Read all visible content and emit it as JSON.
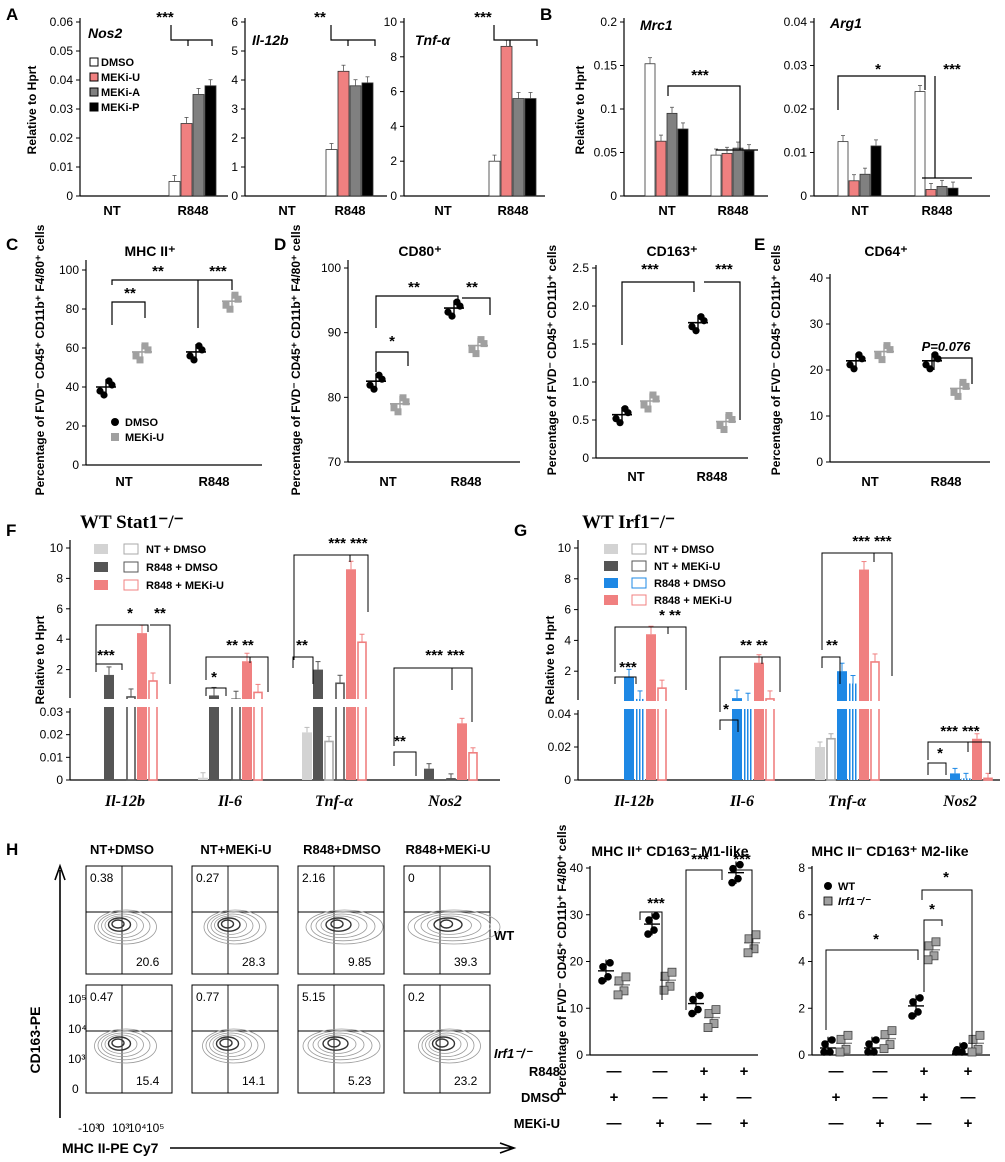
{
  "colors": {
    "dmso": "#ffffff",
    "meku": "#f08080",
    "meka": "#808080",
    "mekp": "#000000",
    "dark": "#555555",
    "light": "#d3d3d3",
    "blue": "#1e88e5",
    "grey_pt": "#a0a0a0"
  },
  "labels": {
    "A": "A",
    "B": "B",
    "C": "C",
    "D": "D",
    "E": "E",
    "F": "F",
    "G": "G",
    "H": "H",
    "rel_hprt": "Relative to Hprt",
    "nt": "NT",
    "r848": "R848",
    "pct_mhc": "Percentage of FVD⁻ CD45⁺ CD11b⁺ F4/80⁺ cells",
    "pct_cd163": "Percentage of FVD⁻ CD45⁺ CD11b⁺ cells",
    "legA": [
      "DMSO",
      "MEKi-U",
      "MEKi-A",
      "MEKi-P"
    ],
    "legC": [
      "DMSO",
      "MEKi-U"
    ],
    "legH": [
      "WT",
      "Irf1⁻/⁻"
    ],
    "F_title": "WT Stat1⁻/⁻",
    "G_title": "WT Irf1⁻/⁻",
    "F_leg": [
      "NT      + DMSO",
      "R848 + DMSO",
      "R848 + MEKi-U"
    ],
    "G_leg": [
      "NT      + DMSO",
      "NT      + MEKi-U",
      "R848 + DMSO",
      "R848 + MEKi-U"
    ],
    "pval": "P=0.076",
    "cd163pe": "CD163-PE",
    "mhcpe": "MHC II-PE Cy7",
    "wt": "WT",
    "irf1": "Irf1⁻/⁻",
    "H_m1": "MHC II⁺ CD163⁻ M1-like",
    "H_m2": "MHC II⁻ CD163⁺ M2-like",
    "H_rows": [
      "R848",
      "DMSO",
      "MEKi-U"
    ],
    "flow_ticks": [
      "10⁵",
      "10⁴",
      "10³",
      "0",
      "-10³"
    ]
  },
  "chart_data": [
    {
      "id": "A1",
      "type": "bar",
      "title": "Nos2",
      "categories": [
        "NT",
        "R848"
      ],
      "series": [
        {
          "name": "DMSO",
          "values": [
            0,
            0.005
          ]
        },
        {
          "name": "MEKi-U",
          "values": [
            0,
            0.025
          ]
        },
        {
          "name": "MEKi-A",
          "values": [
            0,
            0.035
          ]
        },
        {
          "name": "MEKi-P",
          "values": [
            0,
            0.038
          ]
        }
      ],
      "ylim": [
        0,
        0.06
      ],
      "yticks": [
        "0",
        "0.01",
        "0.02",
        "0.03",
        "0.04",
        "0.05",
        "0.06"
      ],
      "sig": "***"
    },
    {
      "id": "A2",
      "type": "bar",
      "title": "Il-12b",
      "categories": [
        "NT",
        "R848"
      ],
      "series": [
        {
          "name": "DMSO",
          "values": [
            0,
            1.6
          ]
        },
        {
          "name": "MEKi-U",
          "values": [
            0,
            4.3
          ]
        },
        {
          "name": "MEKi-A",
          "values": [
            0,
            3.8
          ]
        },
        {
          "name": "MEKi-P",
          "values": [
            0,
            3.9
          ]
        }
      ],
      "ylim": [
        0,
        6
      ],
      "yticks": [
        "0",
        "1",
        "2",
        "3",
        "4",
        "5",
        "6"
      ],
      "sig": "**"
    },
    {
      "id": "A3",
      "type": "bar",
      "title": "Tnf-α",
      "categories": [
        "NT",
        "R848"
      ],
      "series": [
        {
          "name": "DMSO",
          "values": [
            0,
            2.0
          ]
        },
        {
          "name": "MEKi-U",
          "values": [
            0,
            8.6
          ]
        },
        {
          "name": "MEKi-A",
          "values": [
            0,
            5.6
          ]
        },
        {
          "name": "MEKi-P",
          "values": [
            0,
            5.6
          ]
        }
      ],
      "ylim": [
        0,
        10
      ],
      "yticks": [
        "0",
        "2",
        "4",
        "6",
        "8",
        "10"
      ],
      "sig": "***"
    },
    {
      "id": "B1",
      "type": "bar",
      "title": "Mrc1",
      "categories": [
        "NT",
        "R848"
      ],
      "series": [
        {
          "name": "DMSO",
          "values": [
            0.152,
            0.047
          ]
        },
        {
          "name": "MEKi-U",
          "values": [
            0.063,
            0.049
          ]
        },
        {
          "name": "MEKi-A",
          "values": [
            0.095,
            0.055
          ]
        },
        {
          "name": "MEKi-P",
          "values": [
            0.077,
            0.052
          ]
        }
      ],
      "ylim": [
        0,
        0.2
      ],
      "yticks": [
        "0",
        "0.05",
        "0.1",
        "0.15",
        "0.2"
      ],
      "sig": "***"
    },
    {
      "id": "B2",
      "type": "bar",
      "title": "Arg1",
      "categories": [
        "NT",
        "R848"
      ],
      "series": [
        {
          "name": "DMSO",
          "values": [
            0.0125,
            0.024
          ]
        },
        {
          "name": "MEKi-U",
          "values": [
            0.0035,
            0.0015
          ]
        },
        {
          "name": "MEKi-A",
          "values": [
            0.005,
            0.0022
          ]
        },
        {
          "name": "MEKi-P",
          "values": [
            0.0115,
            0.0018
          ]
        }
      ],
      "ylim": [
        0,
        0.04
      ],
      "yticks": [
        "0",
        "0.01",
        "0.02",
        "0.03",
        "0.04"
      ],
      "sig": [
        "*",
        "***"
      ]
    },
    {
      "id": "C",
      "type": "scatter",
      "title": "MHC II⁺",
      "categories": [
        "NT",
        "R848"
      ],
      "series": [
        {
          "name": "DMSO",
          "means": [
            40,
            58
          ]
        },
        {
          "name": "MEKi-U",
          "means": [
            58,
            84
          ]
        }
      ],
      "ylim": [
        0,
        100
      ],
      "yticks": [
        "0",
        "20",
        "40",
        "60",
        "80",
        "100"
      ],
      "sig": [
        "**",
        "**",
        "***"
      ]
    },
    {
      "id": "D1",
      "type": "scatter",
      "title": "CD80⁺",
      "categories": [
        "NT",
        "R848"
      ],
      "series": [
        {
          "name": "DMSO",
          "means": [
            82.5,
            93.8
          ]
        },
        {
          "name": "MEKi-U",
          "means": [
            79,
            88
          ]
        }
      ],
      "ylim": [
        70,
        100
      ],
      "yticks": [
        "70",
        "80",
        "90",
        "100"
      ],
      "sig": [
        "*",
        "**",
        "**"
      ]
    },
    {
      "id": "D2",
      "type": "scatter",
      "title": "CD163⁺",
      "categories": [
        "NT",
        "R848"
      ],
      "series": [
        {
          "name": "DMSO",
          "means": [
            0.57,
            1.78
          ]
        },
        {
          "name": "MEKi-U",
          "means": [
            0.75,
            0.48
          ]
        }
      ],
      "ylim": [
        0,
        2.5
      ],
      "yticks": [
        "0",
        "0.5",
        "1.0",
        "1.5",
        "2.0",
        "2.5"
      ],
      "sig": [
        "***",
        "***"
      ]
    },
    {
      "id": "E",
      "type": "scatter",
      "title": "CD64⁺",
      "categories": [
        "NT",
        "R848"
      ],
      "series": [
        {
          "name": "DMSO",
          "means": [
            22,
            22
          ]
        },
        {
          "name": "MEKi-U",
          "means": [
            24,
            16
          ]
        }
      ],
      "ylim": [
        0,
        40
      ],
      "yticks": [
        "0",
        "10",
        "20",
        "30",
        "40"
      ]
    },
    {
      "id": "F",
      "type": "bar",
      "categories": [
        "Il-12b",
        "Il-6",
        "Tnf-α",
        "Nos2"
      ],
      "series": [
        {
          "name": "NT + DMSO",
          "values": [
            0,
            0.001,
            0.021,
            0
          ]
        },
        {
          "name": "R848 + DMSO",
          "values": [
            1.65,
            0.3,
            2.0,
            0.005
          ]
        },
        {
          "name": "NT (open)",
          "values": [
            0,
            0,
            0.017,
            0
          ]
        },
        {
          "name": "R848 + DMSO (open)",
          "values": [
            0.2,
            0.05,
            1.1,
            0.0005
          ]
        },
        {
          "name": "R848 + MEKi-U",
          "values": [
            4.4,
            2.55,
            8.6,
            0.025
          ]
        },
        {
          "name": "R848 + MEKi-U (open)",
          "values": [
            1.25,
            0.5,
            3.8,
            0.012
          ]
        }
      ],
      "yticks": [
        "0",
        "0.01",
        "0.02",
        "0.03",
        "2",
        "4",
        "6",
        "8",
        "10"
      ]
    },
    {
      "id": "G",
      "type": "bar",
      "categories": [
        "Il-12b",
        "Il-6",
        "Tnf-α",
        "Nos2"
      ],
      "series": [
        {
          "name": "NT + DMSO",
          "values": [
            0,
            0,
            0.02,
            0
          ]
        },
        {
          "name": "NT + MEKi-U",
          "values": [
            0,
            0,
            0.025,
            0
          ]
        },
        {
          "name": "R848 + DMSO",
          "values": [
            1.6,
            0.25,
            2.0,
            0.004
          ]
        },
        {
          "name": "R848 + DMSO (open)",
          "values": [
            0.2,
            0.05,
            1.2,
            0.001
          ]
        },
        {
          "name": "R848 + MEKi-U",
          "values": [
            4.4,
            2.55,
            8.6,
            0.025
          ]
        },
        {
          "name": "R848 + MEKi-U (open)",
          "values": [
            0.9,
            0.2,
            2.6,
            0.001
          ]
        }
      ],
      "yticks": [
        "0",
        "0.02",
        "0.04",
        "2",
        "4",
        "6",
        "8",
        "10"
      ]
    },
    {
      "id": "H_flow",
      "type": "table",
      "columns": [
        "NT+DMSO",
        "NT+MEKi-U",
        "R848+DMSO",
        "R848+MEKi-U"
      ],
      "rows": [
        {
          "name": "WT",
          "upper": [
            "0.38",
            "0.27",
            "2.16",
            "0"
          ],
          "lower": [
            "20.6",
            "28.3",
            "9.85",
            "39.3"
          ]
        },
        {
          "name": "Irf1⁻/⁻",
          "upper": [
            "0.47",
            "0.77",
            "5.15",
            "0.2"
          ],
          "lower": [
            "15.4",
            "14.1",
            "5.23",
            "23.2"
          ]
        }
      ]
    },
    {
      "id": "H2",
      "type": "scatter",
      "title": "MHC II⁺ CD163⁻ M1-like",
      "groups": 4,
      "series": [
        {
          "name": "WT",
          "means": [
            18,
            28,
            11,
            39
          ]
        },
        {
          "name": "Irf1⁻/⁻",
          "means": [
            15,
            16,
            8,
            24
          ]
        }
      ],
      "ylim": [
        0,
        40
      ],
      "yticks": [
        "0",
        "10",
        "20",
        "30",
        "40"
      ],
      "sig": [
        "***",
        "***",
        "***"
      ]
    },
    {
      "id": "H3",
      "type": "scatter",
      "title": "MHC II⁻ CD163⁺ M2-like",
      "groups": 4,
      "series": [
        {
          "name": "WT",
          "means": [
            0.3,
            0.3,
            2.1,
            0.05
          ]
        },
        {
          "name": "Irf1⁻/⁻",
          "means": [
            0.5,
            0.7,
            4.5,
            0.5
          ]
        }
      ],
      "ylim": [
        0,
        8
      ],
      "yticks": [
        "0",
        "2",
        "4",
        "6",
        "8"
      ],
      "sig": [
        "*",
        "*",
        "*"
      ]
    },
    {
      "id": "H_conditions",
      "type": "table",
      "rows": [
        {
          "name": "R848",
          "values": [
            "—",
            "—",
            "+",
            "+"
          ]
        },
        {
          "name": "DMSO",
          "values": [
            "+",
            "—",
            "+",
            "—"
          ]
        },
        {
          "name": "MEKi-U",
          "values": [
            "—",
            "+",
            "—",
            "+"
          ]
        }
      ]
    }
  ]
}
